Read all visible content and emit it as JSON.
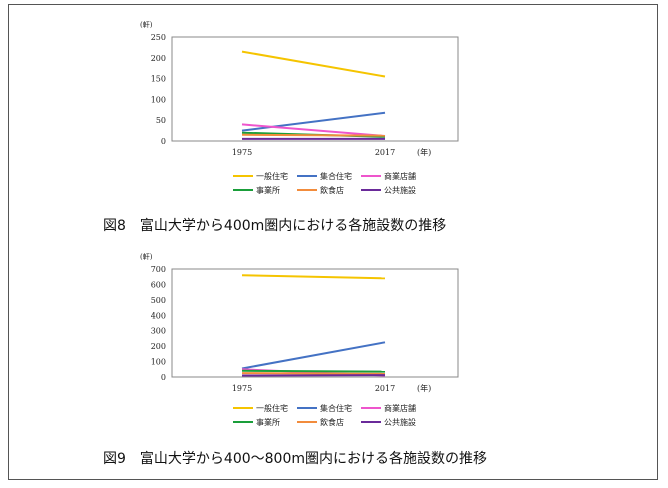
{
  "colors": {
    "一般住宅": "#f5c400",
    "集合住宅": "#4472c4",
    "商業店舗": "#ee55cc",
    "事業所": "#1a9e3a",
    "飲食店": "#f28c3c",
    "公共施設": "#6a2a9a"
  },
  "chart_data": [
    {
      "type": "line",
      "unit_label": "(軒)",
      "x_unit_label": "(年)",
      "categories": [
        "1975",
        "2017"
      ],
      "ylim": [
        0,
        250
      ],
      "yticks": [
        0,
        50,
        100,
        150,
        200,
        250
      ],
      "grid": false,
      "legend_position": "bottom",
      "series": [
        {
          "name": "一般住宅",
          "values": [
            215,
            155
          ]
        },
        {
          "name": "集合住宅",
          "values": [
            25,
            68
          ]
        },
        {
          "name": "商業店舗",
          "values": [
            40,
            12
          ]
        },
        {
          "name": "事業所",
          "values": [
            20,
            10
          ]
        },
        {
          "name": "飲食店",
          "values": [
            15,
            13
          ]
        },
        {
          "name": "公共施設",
          "values": [
            5,
            5
          ]
        }
      ],
      "caption": "図8　富山大学から400m圏内における各施設数の推移"
    },
    {
      "type": "line",
      "unit_label": "(軒)",
      "x_unit_label": "(年)",
      "categories": [
        "1975",
        "2017"
      ],
      "ylim": [
        0,
        700
      ],
      "yticks": [
        0,
        100,
        200,
        300,
        400,
        500,
        600,
        700
      ],
      "grid": false,
      "legend_position": "bottom",
      "series": [
        {
          "name": "一般住宅",
          "values": [
            660,
            640
          ]
        },
        {
          "name": "集合住宅",
          "values": [
            55,
            225
          ]
        },
        {
          "name": "商業店舗",
          "values": [
            50,
            10
          ]
        },
        {
          "name": "事業所",
          "values": [
            40,
            35
          ]
        },
        {
          "name": "飲食店",
          "values": [
            25,
            20
          ]
        },
        {
          "name": "公共施設",
          "values": [
            10,
            12
          ]
        }
      ],
      "caption": "図9　富山大学から400～800m圏内における各施設数の推移"
    }
  ]
}
